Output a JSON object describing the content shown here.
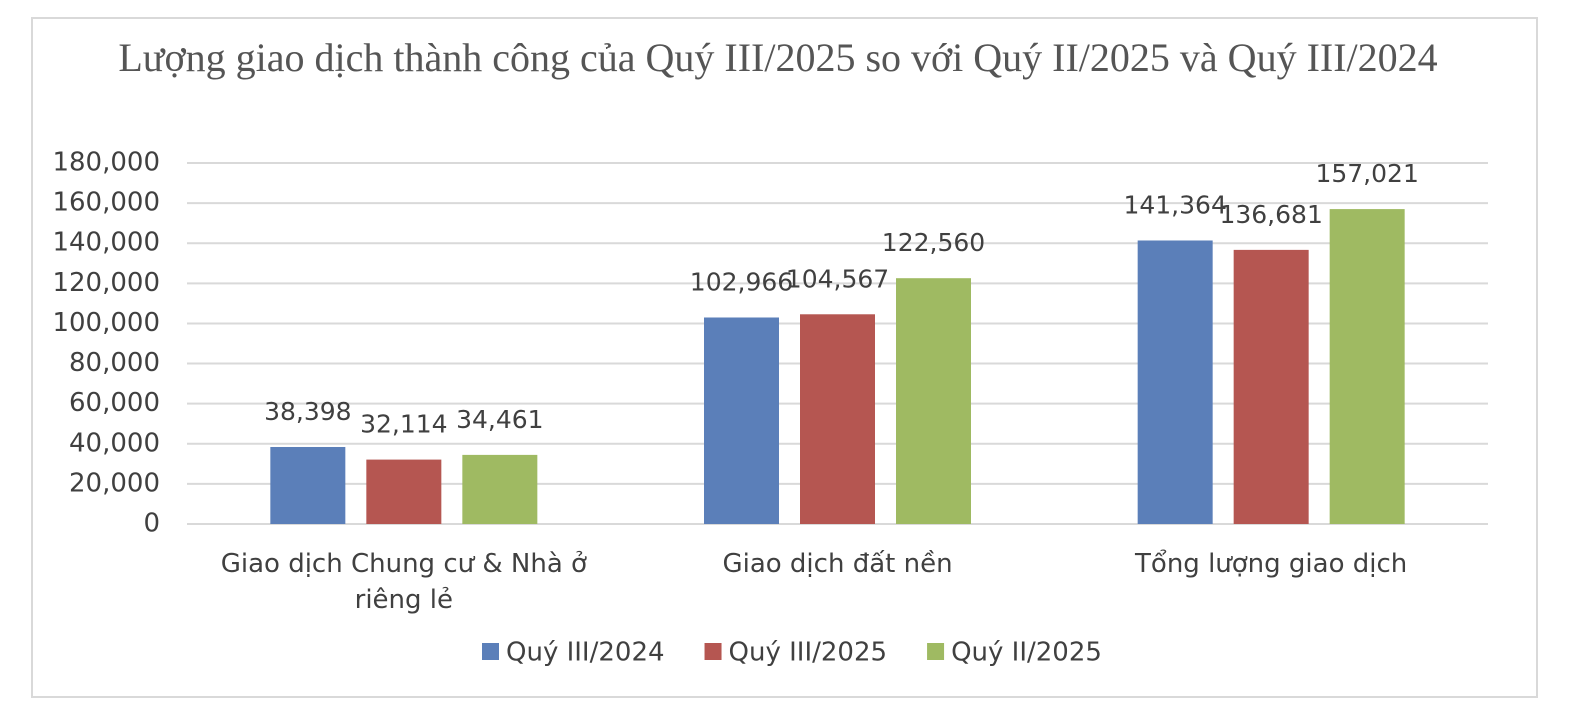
{
  "chart_data": {
    "type": "bar",
    "title": "Lượng giao dịch thành công của Quý III/2025 so với Quý II/2025 và Quý III/2024",
    "categories": [
      "Giao dịch Chung cư & Nhà ở riêng lẻ",
      "Giao dịch đất nền",
      "Tổng lượng giao dịch"
    ],
    "series": [
      {
        "name": "Quý III/2024",
        "color": "#5b7fb9",
        "values": [
          38398,
          102966,
          141364
        ],
        "value_labels": [
          "38,398",
          "102,966",
          "141,364"
        ]
      },
      {
        "name": "Quý III/2025",
        "color": "#b55651",
        "values": [
          32114,
          104567,
          136681
        ],
        "value_labels": [
          "32,114",
          "104,567",
          "136,681"
        ]
      },
      {
        "name": "Quý II/2025",
        "color": "#9fba62",
        "values": [
          34461,
          122560,
          157021
        ],
        "value_labels": [
          "34,461",
          "122,560",
          "157,021"
        ]
      }
    ],
    "ylim": [
      0,
      180000
    ],
    "yticks": [
      0,
      {
        "value": 20000,
        "label": "20,000"
      },
      {
        "value": 40000,
        "label": "40,000"
      },
      {
        "value": 60000,
        "label": "60,000"
      },
      {
        "value": 80000,
        "label": "80,000"
      },
      {
        "value": 100000,
        "label": "100,000"
      },
      {
        "value": 120000,
        "label": "120,000"
      },
      {
        "value": 140000,
        "label": "140,000"
      },
      {
        "value": 160000,
        "label": "160,000"
      },
      {
        "value": 180000,
        "label": "180,000"
      }
    ],
    "grid": true,
    "legend": "bottom"
  }
}
